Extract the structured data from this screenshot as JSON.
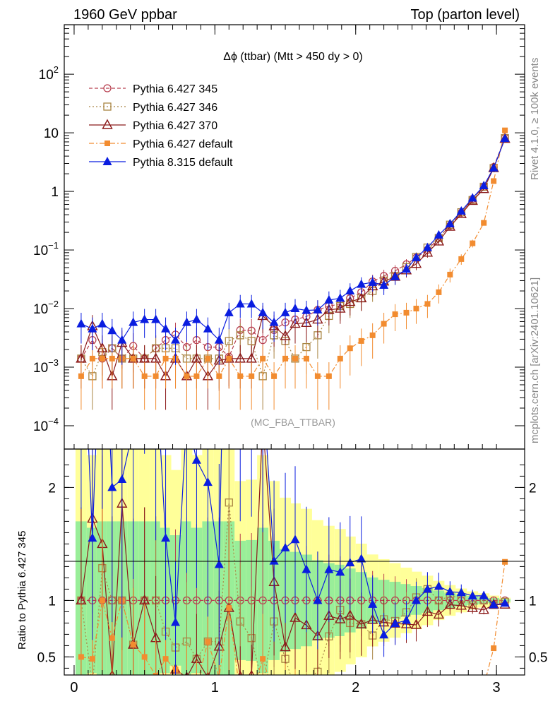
{
  "header": {
    "left": "1960 GeV ppbar",
    "right": "Top (parton level)"
  },
  "side_labels": {
    "rivet": "Rivet 4.1.0, ≥ 100k events",
    "mcplots": "mcplots.cern.ch [arXiv:2401.10621]"
  },
  "watermark": "(MC_FBA_TTBAR)",
  "chart_data": {
    "type": "line",
    "title": "Δϕ (ttbar) (Mtt > 450 dy > 0)",
    "xlabel": "",
    "ylabel_ratio": "Ratio to Pythia 6.427 345",
    "xlim": [
      -0.07,
      3.2
    ],
    "ylim_main": [
      4e-05,
      700
    ],
    "yscale_main": "log",
    "ylim_ratio": [
      0.34,
      2.34
    ],
    "x_ticks": [
      "0",
      "1",
      "2",
      "3"
    ],
    "y_ticks_main": [
      "10^-4",
      "10^-3",
      "10^-2",
      "10^-1",
      "1",
      "10",
      "10^2"
    ],
    "y_ticks_ratio": [
      "0.5",
      "1",
      "2"
    ],
    "legend_position": "top-left",
    "x": [
      0.05,
      0.13,
      0.2,
      0.27,
      0.34,
      0.42,
      0.5,
      0.58,
      0.65,
      0.72,
      0.8,
      0.87,
      0.95,
      1.03,
      1.1,
      1.18,
      1.26,
      1.34,
      1.42,
      1.5,
      1.57,
      1.65,
      1.73,
      1.81,
      1.89,
      1.96,
      2.04,
      2.12,
      2.2,
      2.28,
      2.36,
      2.43,
      2.51,
      2.59,
      2.67,
      2.75,
      2.83,
      2.91,
      2.98,
      3.06
    ],
    "series": [
      {
        "name": "Pythia 6.427 345",
        "color": "#b84050",
        "marker": "open-circle",
        "dash": "dashed",
        "values": [
          0.0014,
          0.0029,
          0.0014,
          0.0021,
          0.0014,
          0.0023,
          0.0014,
          0.0021,
          0.0029,
          0.0036,
          0.0022,
          0.0029,
          0.0022,
          0.0022,
          0.0015,
          0.0043,
          0.0042,
          0.0029,
          0.0043,
          0.0058,
          0.0065,
          0.0073,
          0.0095,
          0.011,
          0.012,
          0.015,
          0.019,
          0.029,
          0.036,
          0.044,
          0.057,
          0.074,
          0.1,
          0.16,
          0.26,
          0.43,
          0.74,
          1.2,
          2.6,
          8.2
        ]
      },
      {
        "name": "Pythia 6.427 346",
        "color": "#a98543",
        "marker": "open-square",
        "dash": "dotted",
        "values": [
          0.0014,
          0.0007,
          0.0018,
          0.0021,
          0.0014,
          0.0014,
          0.0014,
          0.0021,
          0.0021,
          0.0021,
          0.0014,
          0.0014,
          0.0014,
          0.0014,
          0.0028,
          0.0035,
          0.0028,
          0.0007,
          0.0035,
          0.0028,
          0.0014,
          0.0022,
          0.0035,
          0.0075,
          0.011,
          0.012,
          0.015,
          0.02,
          0.03,
          0.036,
          0.051,
          0.076,
          0.11,
          0.16,
          0.27,
          0.44,
          0.71,
          1.2,
          2.5,
          8.1
        ]
      },
      {
        "name": "Pythia 6.427 370",
        "color": "#8b1a1a",
        "marker": "open-triangle",
        "dash": "solid",
        "values": [
          0.0014,
          0.005,
          0.0021,
          0.0007,
          0.0026,
          0.0014,
          0.0014,
          0.0014,
          0.0007,
          0.0014,
          0.0007,
          0.0014,
          0.0007,
          0.0013,
          0.0014,
          0.0014,
          0.0014,
          0.0075,
          0.005,
          0.0034,
          0.0055,
          0.0057,
          0.0065,
          0.0095,
          0.01,
          0.013,
          0.015,
          0.024,
          0.029,
          0.035,
          0.045,
          0.058,
          0.09,
          0.14,
          0.25,
          0.41,
          0.69,
          1.1,
          2.5,
          7.9
        ]
      },
      {
        "name": "Pythia 6.427 default",
        "color": "#f28c30",
        "marker": "filled-square",
        "dash": "dashdot",
        "values": [
          0.0007,
          0.0014,
          0.0014,
          0.0014,
          0.0014,
          0.0014,
          0.0007,
          0.0007,
          0.0014,
          0.0014,
          0.0007,
          0.0007,
          0.0014,
          0.0007,
          0.0014,
          0.0007,
          0.0007,
          0.0014,
          0.0007,
          0.0014,
          0.0014,
          0.0014,
          0.0007,
          0.0007,
          0.0014,
          0.0021,
          0.0028,
          0.0035,
          0.0055,
          0.008,
          0.0085,
          0.01,
          0.012,
          0.019,
          0.038,
          0.07,
          0.13,
          0.29,
          1.5,
          11
        ]
      },
      {
        "name": "Pythia 8.315 default",
        "color": "#0a1de0",
        "marker": "filled-triangle",
        "dash": "solid",
        "values": [
          0.0055,
          0.0045,
          0.0055,
          0.0042,
          0.0029,
          0.0058,
          0.0065,
          0.0065,
          0.0045,
          0.0029,
          0.0058,
          0.0065,
          0.0045,
          0.0029,
          0.0085,
          0.012,
          0.012,
          0.0085,
          0.0058,
          0.0085,
          0.01,
          0.0093,
          0.0095,
          0.014,
          0.015,
          0.02,
          0.026,
          0.028,
          0.025,
          0.035,
          0.047,
          0.074,
          0.11,
          0.18,
          0.28,
          0.46,
          0.77,
          1.25,
          2.5,
          8.0
        ]
      }
    ]
  }
}
